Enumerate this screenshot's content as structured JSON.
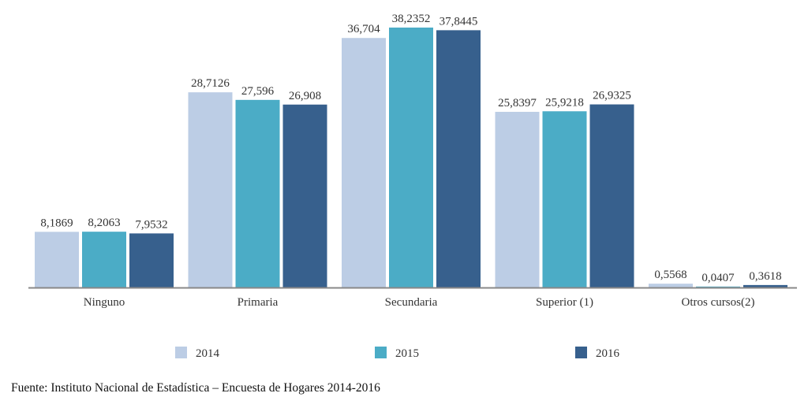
{
  "chart_data": {
    "type": "bar",
    "categories": [
      "Ninguno",
      "Primaria",
      "Secundaria",
      "Superior (1)",
      "Otros cursos(2)"
    ],
    "series": [
      {
        "name": "2014",
        "color": "#bccde5",
        "values": [
          8.1869,
          28.7126,
          36.704,
          25.8397,
          0.5568
        ],
        "labels": [
          "8,1869",
          "28,7126",
          "36,704",
          "25,8397",
          "0,5568"
        ]
      },
      {
        "name": "2015",
        "color": "#4bacc6",
        "values": [
          8.2063,
          27.596,
          38.2352,
          25.9218,
          0.0407
        ],
        "labels": [
          "8,2063",
          "27,596",
          "38,2352",
          "25,9218",
          "0,0407"
        ]
      },
      {
        "name": "2016",
        "color": "#37608d",
        "values": [
          7.9532,
          26.908,
          37.8445,
          26.9325,
          0.3618
        ],
        "labels": [
          "7,9532",
          "26,908",
          "37,8445",
          "26,9325",
          "0,3618"
        ]
      }
    ],
    "ylim": [
      0,
      40
    ],
    "grid": false,
    "legend_position": "bottom"
  },
  "source": "Fuente: Instituto Nacional de Estadística – Encuesta de Hogares 2014-2016"
}
